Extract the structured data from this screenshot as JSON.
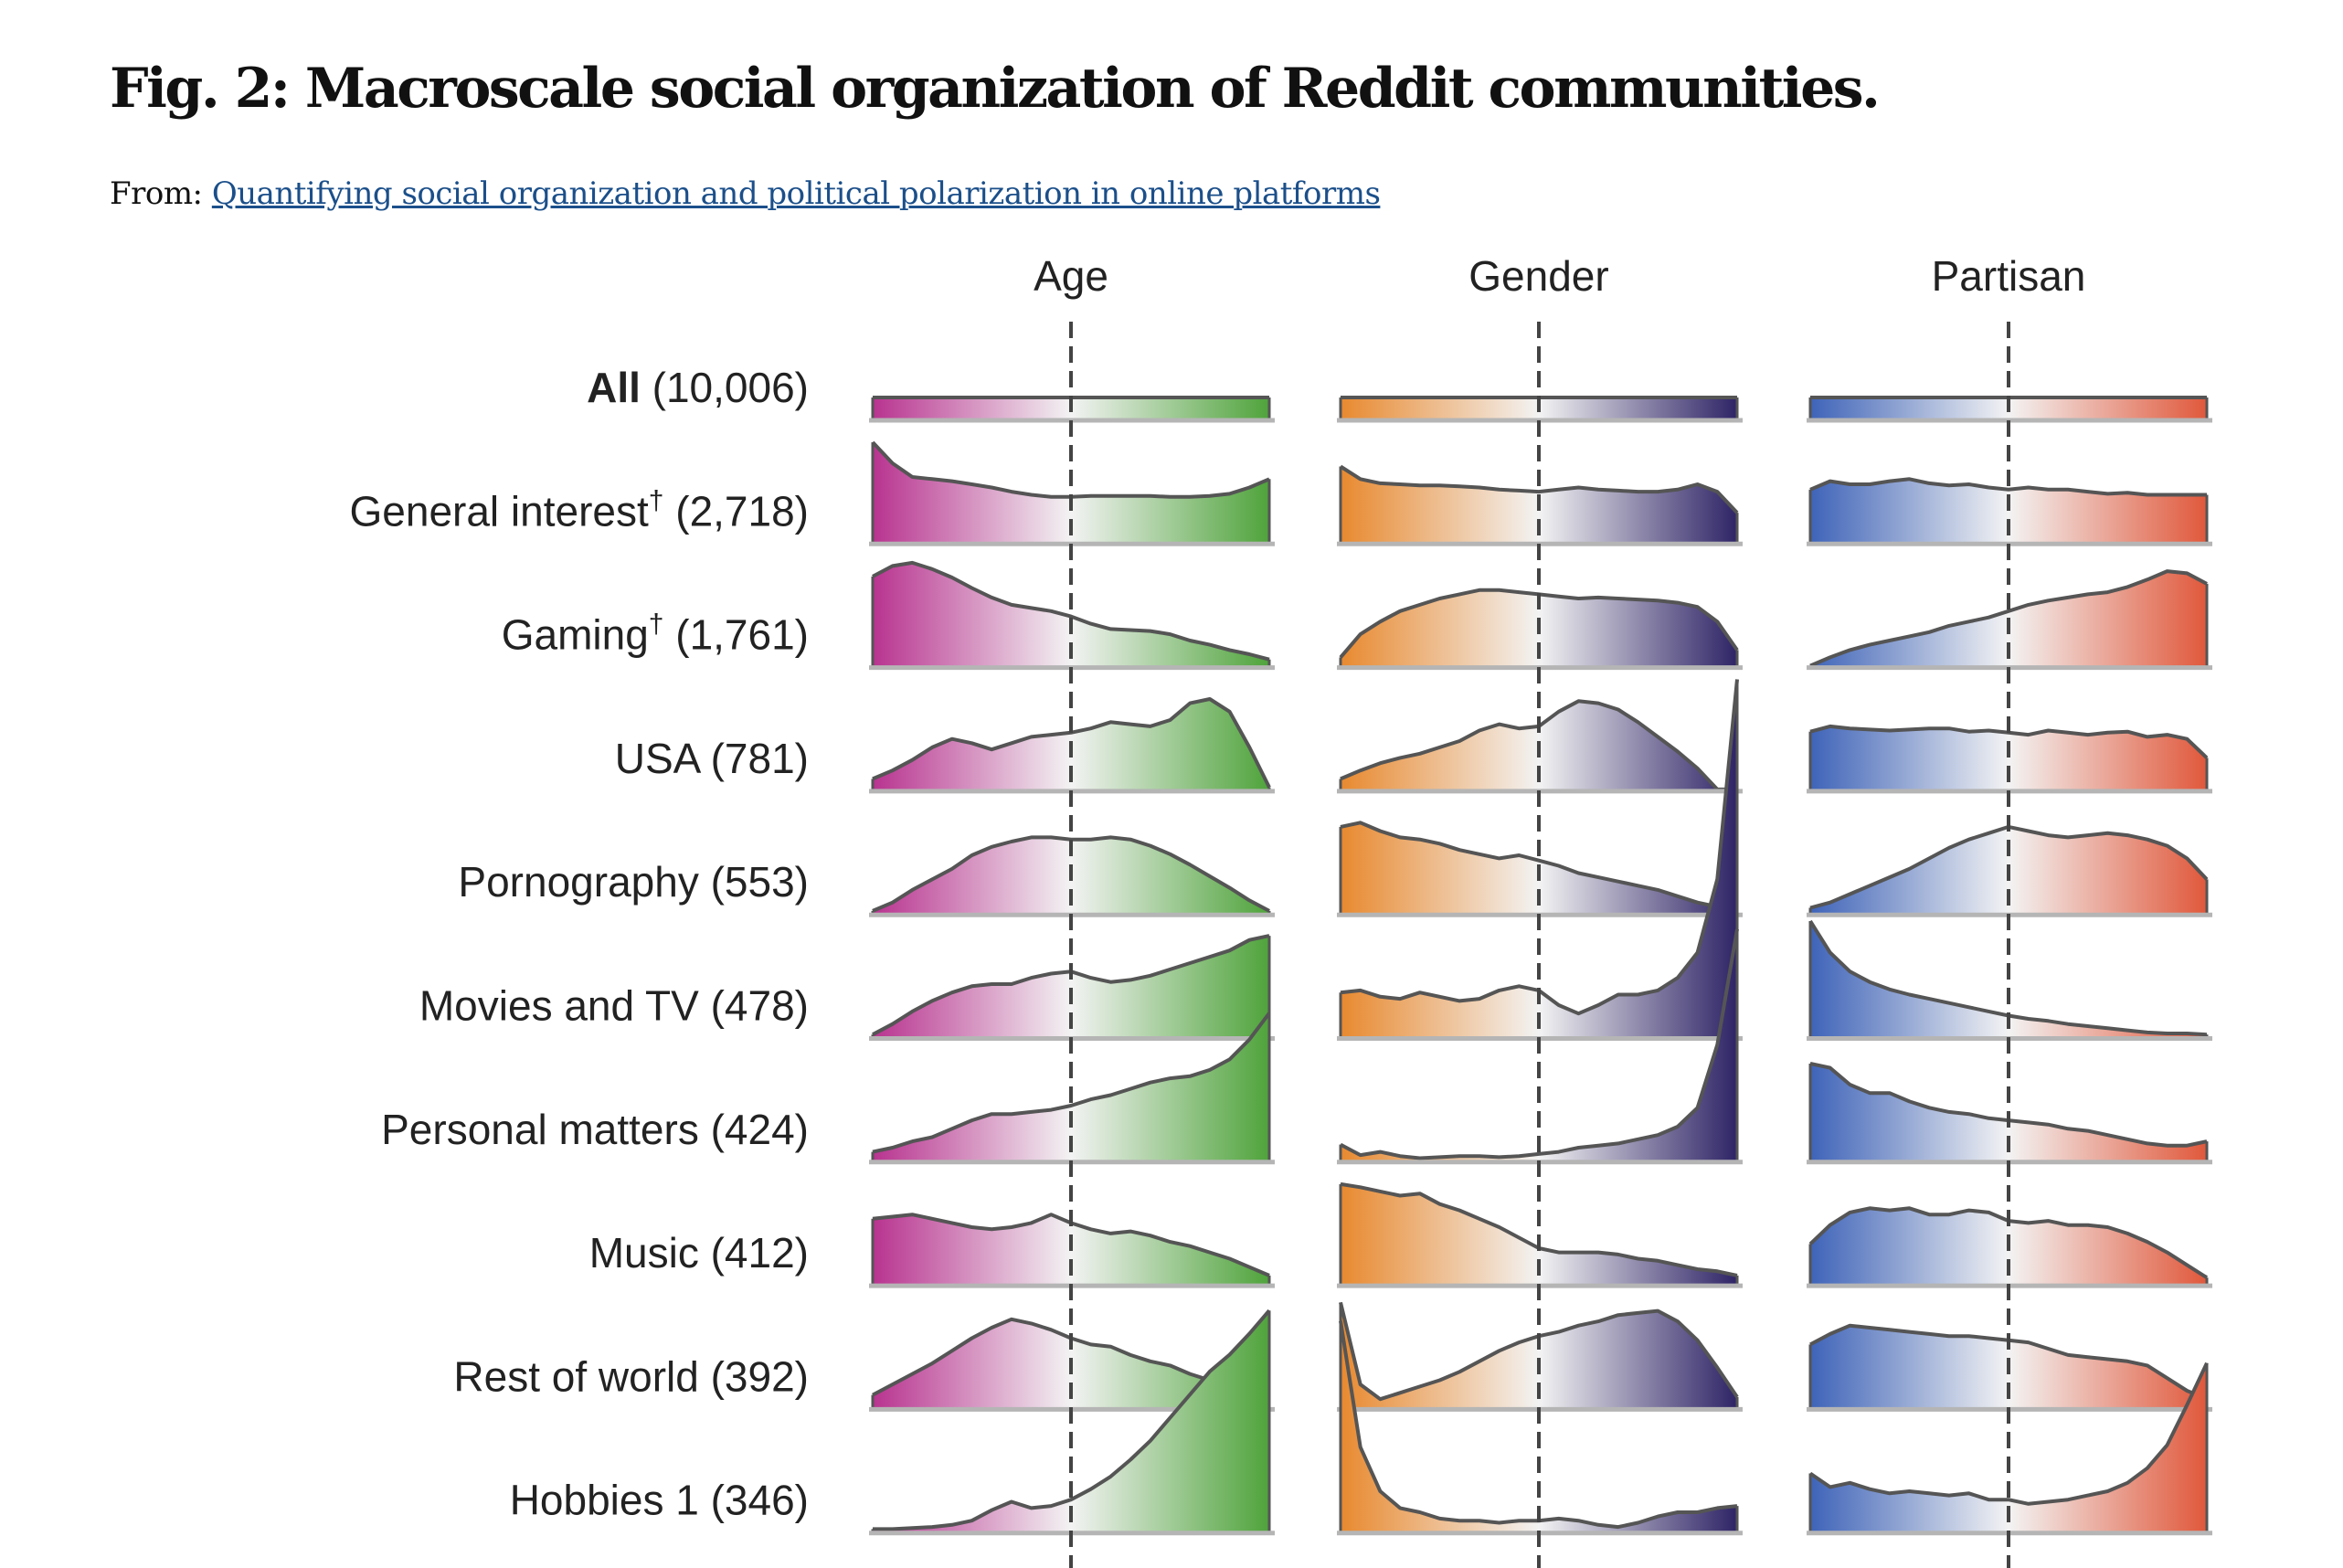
{
  "figure": {
    "title": "Fig. 2: Macroscale social organization of Reddit communities.",
    "from_label": "From:",
    "source_link": "Quantifying social organization and political polarization in online platforms"
  },
  "chart_data": {
    "type": "area",
    "panels": [
      {
        "name": "Age",
        "colors": [
          "#b8338f",
          "#f3f3f3",
          "#4fa33b"
        ]
      },
      {
        "name": "Gender",
        "colors": [
          "#e8892f",
          "#f3f3f3",
          "#2e2466"
        ]
      },
      {
        "name": "Partisan",
        "colors": [
          "#3e63b8",
          "#f3f3f3",
          "#e0583b"
        ]
      }
    ],
    "x_range": [
      -1,
      1
    ],
    "center_line": 0,
    "rows": [
      {
        "label": "All",
        "bold": true,
        "dagger": false,
        "count": "(10,006)",
        "age": [
          0.2,
          0.2,
          0.2,
          0.2,
          0.2,
          0.2,
          0.2,
          0.2,
          0.2,
          0.2,
          0.2,
          0.2,
          0.2,
          0.2,
          0.2,
          0.2,
          0.2,
          0.2,
          0.2,
          0.2,
          0.2
        ],
        "gender": [
          0.2,
          0.2,
          0.2,
          0.2,
          0.2,
          0.2,
          0.2,
          0.2,
          0.2,
          0.2,
          0.2,
          0.2,
          0.2,
          0.2,
          0.2,
          0.2,
          0.2,
          0.2,
          0.2,
          0.2,
          0.2
        ],
        "partisan": [
          0.2,
          0.2,
          0.2,
          0.2,
          0.2,
          0.2,
          0.2,
          0.2,
          0.2,
          0.2,
          0.2,
          0.2,
          0.2,
          0.2,
          0.2,
          0.2,
          0.2,
          0.2,
          0.2,
          0.2,
          0.2
        ]
      },
      {
        "label": "General interest",
        "bold": false,
        "dagger": true,
        "count": "(2,718)",
        "age": [
          0.95,
          0.75,
          0.62,
          0.6,
          0.58,
          0.55,
          0.52,
          0.48,
          0.45,
          0.43,
          0.43,
          0.44,
          0.44,
          0.44,
          0.44,
          0.43,
          0.43,
          0.44,
          0.46,
          0.52,
          0.6
        ],
        "gender": [
          0.72,
          0.6,
          0.56,
          0.55,
          0.54,
          0.54,
          0.53,
          0.52,
          0.5,
          0.49,
          0.48,
          0.5,
          0.52,
          0.5,
          0.49,
          0.48,
          0.48,
          0.5,
          0.55,
          0.48,
          0.28
        ],
        "partisan": [
          0.5,
          0.58,
          0.55,
          0.55,
          0.58,
          0.6,
          0.56,
          0.54,
          0.55,
          0.52,
          0.5,
          0.52,
          0.5,
          0.5,
          0.48,
          0.46,
          0.47,
          0.45,
          0.45,
          0.45,
          0.45
        ]
      },
      {
        "label": "Gaming",
        "bold": false,
        "dagger": true,
        "count": "(1,761)",
        "age": [
          0.85,
          0.95,
          0.98,
          0.92,
          0.84,
          0.74,
          0.65,
          0.58,
          0.55,
          0.52,
          0.47,
          0.4,
          0.35,
          0.34,
          0.33,
          0.3,
          0.24,
          0.2,
          0.15,
          0.11,
          0.06
        ],
        "gender": [
          0.08,
          0.3,
          0.42,
          0.52,
          0.58,
          0.64,
          0.68,
          0.72,
          0.72,
          0.7,
          0.68,
          0.66,
          0.64,
          0.65,
          0.64,
          0.63,
          0.62,
          0.6,
          0.56,
          0.42,
          0.15
        ],
        "partisan": [
          0.0,
          0.08,
          0.15,
          0.2,
          0.24,
          0.28,
          0.32,
          0.38,
          0.42,
          0.46,
          0.52,
          0.58,
          0.62,
          0.65,
          0.68,
          0.7,
          0.75,
          0.82,
          0.9,
          0.88,
          0.78
        ]
      },
      {
        "label": "USA",
        "bold": false,
        "dagger": false,
        "count": "(781)",
        "age": [
          0.1,
          0.18,
          0.28,
          0.4,
          0.48,
          0.44,
          0.38,
          0.44,
          0.5,
          0.52,
          0.54,
          0.58,
          0.64,
          0.62,
          0.6,
          0.66,
          0.82,
          0.86,
          0.74,
          0.4,
          0.02
        ],
        "gender": [
          0.1,
          0.18,
          0.25,
          0.3,
          0.34,
          0.4,
          0.46,
          0.56,
          0.62,
          0.58,
          0.6,
          0.74,
          0.84,
          0.82,
          0.76,
          0.64,
          0.5,
          0.36,
          0.2,
          0.0,
          0.0
        ],
        "partisan": [
          0.55,
          0.6,
          0.58,
          0.57,
          0.56,
          0.57,
          0.58,
          0.58,
          0.55,
          0.56,
          0.54,
          0.52,
          0.56,
          0.54,
          0.52,
          0.54,
          0.55,
          0.5,
          0.52,
          0.48,
          0.3
        ]
      },
      {
        "label": "Pornography",
        "bold": false,
        "dagger": false,
        "count": "(553)",
        "age": [
          0.02,
          0.1,
          0.22,
          0.32,
          0.42,
          0.55,
          0.63,
          0.68,
          0.72,
          0.72,
          0.7,
          0.7,
          0.72,
          0.7,
          0.64,
          0.56,
          0.46,
          0.35,
          0.24,
          0.12,
          0.02
        ],
        "gender": [
          0.82,
          0.86,
          0.78,
          0.72,
          0.7,
          0.66,
          0.6,
          0.56,
          0.52,
          0.55,
          0.5,
          0.45,
          0.38,
          0.34,
          0.3,
          0.26,
          0.22,
          0.16,
          0.1,
          0.06,
          0.04
        ],
        "partisan": [
          0.05,
          0.1,
          0.18,
          0.26,
          0.34,
          0.42,
          0.52,
          0.62,
          0.7,
          0.76,
          0.82,
          0.78,
          0.74,
          0.72,
          0.74,
          0.76,
          0.74,
          0.7,
          0.64,
          0.52,
          0.32
        ]
      },
      {
        "label": "Movies and TV",
        "bold": false,
        "dagger": false,
        "count": "(478)",
        "age": [
          0.02,
          0.12,
          0.24,
          0.34,
          0.42,
          0.48,
          0.5,
          0.5,
          0.56,
          0.6,
          0.62,
          0.56,
          0.52,
          0.54,
          0.58,
          0.64,
          0.7,
          0.76,
          0.82,
          0.92,
          0.96
        ],
        "gender": [
          0.42,
          0.44,
          0.38,
          0.36,
          0.42,
          0.38,
          0.34,
          0.36,
          0.44,
          0.48,
          0.44,
          0.3,
          0.22,
          0.3,
          0.4,
          0.4,
          0.44,
          0.56,
          0.8,
          1.5,
          3.4
        ],
        "partisan": [
          1.1,
          0.8,
          0.62,
          0.52,
          0.45,
          0.4,
          0.36,
          0.32,
          0.28,
          0.24,
          0.2,
          0.17,
          0.15,
          0.12,
          0.1,
          0.08,
          0.06,
          0.04,
          0.03,
          0.03,
          0.02
        ]
      },
      {
        "label": "Personal matters",
        "bold": false,
        "dagger": false,
        "count": "(424)",
        "age": [
          0.08,
          0.12,
          0.18,
          0.22,
          0.3,
          0.38,
          0.44,
          0.44,
          0.46,
          0.48,
          0.52,
          0.58,
          0.62,
          0.68,
          0.74,
          0.78,
          0.8,
          0.86,
          0.96,
          1.15,
          1.4
        ],
        "gender": [
          0.15,
          0.05,
          0.08,
          0.04,
          0.02,
          0.03,
          0.04,
          0.04,
          0.03,
          0.04,
          0.06,
          0.08,
          0.12,
          0.14,
          0.16,
          0.2,
          0.24,
          0.32,
          0.5,
          1.1,
          2.2
        ],
        "partisan": [
          0.92,
          0.88,
          0.72,
          0.64,
          0.64,
          0.56,
          0.5,
          0.46,
          0.44,
          0.4,
          0.38,
          0.36,
          0.34,
          0.3,
          0.28,
          0.24,
          0.2,
          0.16,
          0.14,
          0.14,
          0.18
        ]
      },
      {
        "label": "Music",
        "bold": false,
        "dagger": false,
        "count": "(412)",
        "age": [
          0.62,
          0.64,
          0.66,
          0.62,
          0.58,
          0.54,
          0.52,
          0.54,
          0.58,
          0.66,
          0.58,
          0.52,
          0.48,
          0.5,
          0.46,
          0.4,
          0.36,
          0.3,
          0.24,
          0.16,
          0.08
        ],
        "gender": [
          0.95,
          0.92,
          0.88,
          0.84,
          0.86,
          0.76,
          0.7,
          0.62,
          0.54,
          0.44,
          0.34,
          0.3,
          0.3,
          0.3,
          0.28,
          0.24,
          0.22,
          0.18,
          0.14,
          0.12,
          0.08
        ],
        "partisan": [
          0.38,
          0.56,
          0.68,
          0.72,
          0.7,
          0.72,
          0.66,
          0.66,
          0.7,
          0.68,
          0.6,
          0.58,
          0.6,
          0.56,
          0.56,
          0.54,
          0.48,
          0.4,
          0.3,
          0.18,
          0.06
        ]
      },
      {
        "label": "Rest of world",
        "bold": false,
        "dagger": false,
        "count": "(392)",
        "age": [
          0.12,
          0.22,
          0.32,
          0.42,
          0.54,
          0.66,
          0.76,
          0.84,
          0.8,
          0.74,
          0.66,
          0.6,
          0.58,
          0.5,
          0.44,
          0.4,
          0.32,
          0.26,
          0.2,
          0.1,
          0.04
        ],
        "gender": [
          1.0,
          0.22,
          0.08,
          0.14,
          0.2,
          0.26,
          0.34,
          0.44,
          0.54,
          0.62,
          0.68,
          0.72,
          0.78,
          0.82,
          0.88,
          0.9,
          0.92,
          0.82,
          0.64,
          0.38,
          0.1
        ],
        "partisan": [
          0.6,
          0.7,
          0.78,
          0.76,
          0.74,
          0.72,
          0.7,
          0.68,
          0.68,
          0.66,
          0.64,
          0.62,
          0.56,
          0.5,
          0.48,
          0.46,
          0.44,
          0.4,
          0.28,
          0.16,
          0.08
        ]
      },
      {
        "label": "Hobbies 1",
        "bold": false,
        "dagger": false,
        "count": "(346)",
        "age": [
          0.02,
          0.02,
          0.03,
          0.04,
          0.06,
          0.1,
          0.2,
          0.28,
          0.22,
          0.24,
          0.3,
          0.4,
          0.52,
          0.68,
          0.86,
          1.08,
          1.3,
          1.52,
          1.68,
          1.88,
          2.1
        ],
        "gender": [
          2.0,
          0.8,
          0.38,
          0.22,
          0.18,
          0.12,
          0.1,
          0.1,
          0.08,
          0.1,
          0.1,
          0.12,
          0.1,
          0.06,
          0.04,
          0.08,
          0.14,
          0.18,
          0.18,
          0.22,
          0.24
        ],
        "partisan": [
          0.55,
          0.42,
          0.46,
          0.4,
          0.36,
          0.38,
          0.36,
          0.34,
          0.36,
          0.3,
          0.3,
          0.26,
          0.28,
          0.3,
          0.34,
          0.38,
          0.46,
          0.6,
          0.82,
          1.2,
          1.6
        ]
      }
    ]
  }
}
